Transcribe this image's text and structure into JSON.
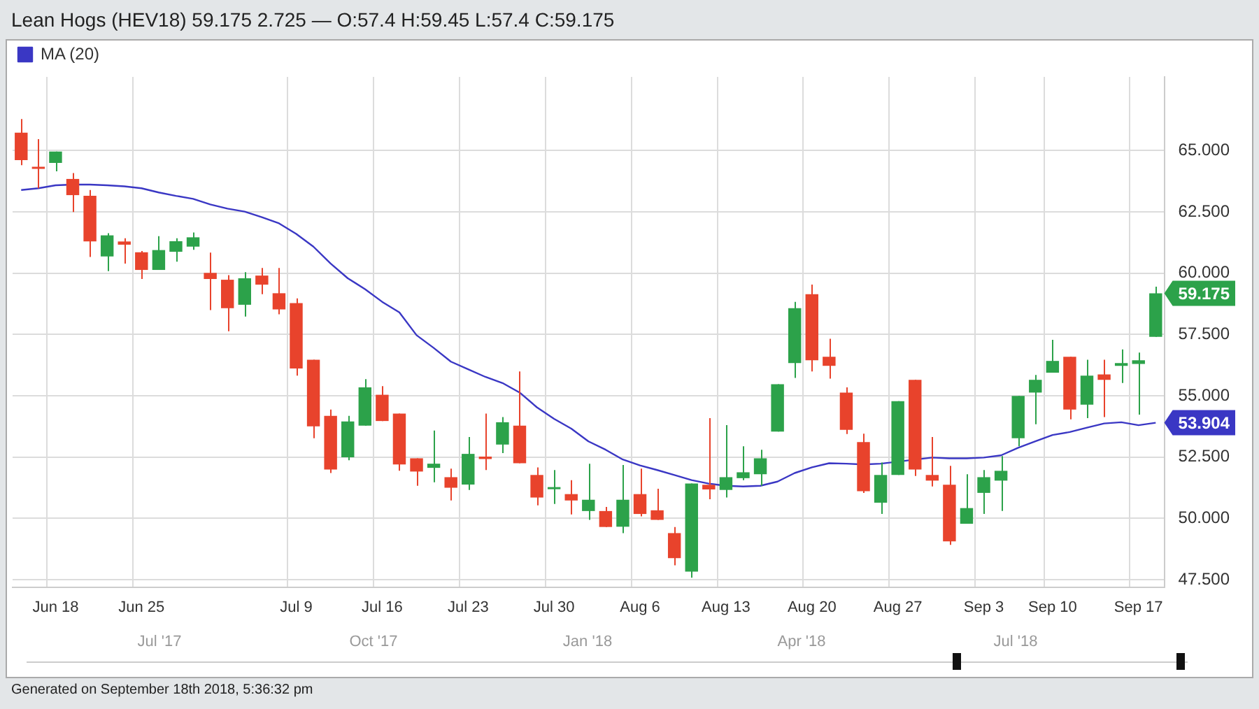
{
  "chart_data": {
    "type": "candlestick",
    "title": "Lean Hogs (HEV18) 59.175 2.725 — O:57.4 H:59.45 L:57.4 C:59.175",
    "categories": [
      null,
      null,
      "Jun 18",
      null,
      null,
      null,
      null,
      "Jun 25",
      null,
      null,
      null,
      null,
      null,
      null,
      null,
      null,
      "Jul 9",
      null,
      null,
      null,
      null,
      "Jul 16",
      null,
      null,
      null,
      null,
      "Jul 23",
      null,
      null,
      null,
      null,
      "Jul 30",
      null,
      null,
      null,
      null,
      "Aug 6",
      null,
      null,
      null,
      null,
      "Aug 13",
      null,
      null,
      null,
      null,
      "Aug 20",
      null,
      null,
      null,
      null,
      "Aug 27",
      null,
      null,
      null,
      null,
      "Sep 3",
      null,
      null,
      null,
      "Sep 10",
      null,
      null,
      null,
      null,
      "Sep 17",
      null
    ],
    "ohlc": [
      [
        65.73,
        66.28,
        64.4,
        64.61
      ],
      [
        64.33,
        65.46,
        63.46,
        64.25
      ],
      [
        64.49,
        64.96,
        64.15,
        64.96
      ],
      [
        63.84,
        64.08,
        62.49,
        63.18
      ],
      [
        63.15,
        63.39,
        60.66,
        61.29
      ],
      [
        60.68,
        61.63,
        60.08,
        61.54
      ],
      [
        61.29,
        61.42,
        60.39,
        61.16
      ],
      [
        60.85,
        60.9,
        59.76,
        60.13
      ],
      [
        60.13,
        61.51,
        60.13,
        60.94
      ],
      [
        60.87,
        61.42,
        60.47,
        61.3
      ],
      [
        61.08,
        61.66,
        60.95,
        61.46
      ],
      [
        60.01,
        60.84,
        58.49,
        59.76
      ],
      [
        59.73,
        59.92,
        57.63,
        58.57
      ],
      [
        58.71,
        60.04,
        58.23,
        59.79
      ],
      [
        59.9,
        60.21,
        59.14,
        59.53
      ],
      [
        59.18,
        60.21,
        58.32,
        58.52
      ],
      [
        58.78,
        58.97,
        55.82,
        56.11
      ],
      [
        56.47,
        56.47,
        53.27,
        53.75
      ],
      [
        54.18,
        54.44,
        51.85,
        51.99
      ],
      [
        52.49,
        54.18,
        52.37,
        53.95
      ],
      [
        53.78,
        55.68,
        53.78,
        55.34
      ],
      [
        55.04,
        55.39,
        53.97,
        53.97
      ],
      [
        54.27,
        54.27,
        51.94,
        52.2
      ],
      [
        52.45,
        52.45,
        51.33,
        51.91
      ],
      [
        52.06,
        53.58,
        51.47,
        52.23
      ],
      [
        51.68,
        52.03,
        50.73,
        51.25
      ],
      [
        51.38,
        53.32,
        51.16,
        52.63
      ],
      [
        52.52,
        54.27,
        51.97,
        52.42
      ],
      [
        53.01,
        54.13,
        52.66,
        53.92
      ],
      [
        53.78,
        55.99,
        52.25,
        52.25
      ],
      [
        51.77,
        52.08,
        50.53,
        50.85
      ],
      [
        51.19,
        51.97,
        50.59,
        51.22
      ],
      [
        50.99,
        51.56,
        50.16,
        50.73
      ],
      [
        50.3,
        52.23,
        49.94,
        50.76
      ],
      [
        50.3,
        50.47,
        49.65,
        49.65
      ],
      [
        49.66,
        52.18,
        49.4,
        50.76
      ],
      [
        50.99,
        52.03,
        50.08,
        50.18
      ],
      [
        50.33,
        51.21,
        49.94,
        49.94
      ],
      [
        49.4,
        49.65,
        48.09,
        48.38
      ],
      [
        47.83,
        51.42,
        47.58,
        51.42
      ],
      [
        51.37,
        54.09,
        50.78,
        51.18
      ],
      [
        51.16,
        53.8,
        50.85,
        51.68
      ],
      [
        51.64,
        52.94,
        51.56,
        51.88
      ],
      [
        51.8,
        52.8,
        51.33,
        52.45
      ],
      [
        53.54,
        55.47,
        53.54,
        55.47
      ],
      [
        56.33,
        58.83,
        55.73,
        58.57
      ],
      [
        59.14,
        59.53,
        55.99,
        56.45
      ],
      [
        56.59,
        57.32,
        55.7,
        56.22
      ],
      [
        55.13,
        55.34,
        53.44,
        53.61
      ],
      [
        53.11,
        53.45,
        51.04,
        51.11
      ],
      [
        50.64,
        52.28,
        50.18,
        51.77
      ],
      [
        51.77,
        54.78,
        51.77,
        54.78
      ],
      [
        55.65,
        55.65,
        51.73,
        51.99
      ],
      [
        51.77,
        53.32,
        51.3,
        51.54
      ],
      [
        51.37,
        52.14,
        48.92,
        49.06
      ],
      [
        49.78,
        51.8,
        49.78,
        50.42
      ],
      [
        51.04,
        51.97,
        50.18,
        51.68
      ],
      [
        51.54,
        52.54,
        50.3,
        51.94
      ],
      [
        53.27,
        54.99,
        52.94,
        54.99
      ],
      [
        55.13,
        55.85,
        53.84,
        55.65
      ],
      [
        55.94,
        57.28,
        55.94,
        56.42
      ],
      [
        56.59,
        56.59,
        54.04,
        54.44
      ],
      [
        54.64,
        56.47,
        54.09,
        55.82
      ],
      [
        55.87,
        56.47,
        54.13,
        55.65
      ],
      [
        56.22,
        56.89,
        55.52,
        56.33
      ],
      [
        56.3,
        56.76,
        54.23,
        56.45
      ],
      [
        57.4,
        59.45,
        57.4,
        59.175
      ]
    ],
    "colors": [
      "#e8432c",
      "#e8432c",
      "#2ca24a",
      "#e8432c",
      "#e8432c",
      "#2ca24a",
      "#e8432c",
      "#e8432c",
      "#2ca24a",
      "#2ca24a",
      "#2ca24a",
      "#e8432c",
      "#e8432c",
      "#2ca24a",
      "#e8432c",
      "#e8432c",
      "#e8432c",
      "#e8432c",
      "#e8432c",
      "#2ca24a",
      "#2ca24a",
      "#e8432c",
      "#e8432c",
      "#e8432c",
      "#2ca24a",
      "#e8432c",
      "#2ca24a",
      "#e8432c",
      "#2ca24a",
      "#e8432c",
      "#e8432c",
      "#2ca24a",
      "#e8432c",
      "#2ca24a",
      "#e8432c",
      "#2ca24a",
      "#e8432c",
      "#e8432c",
      "#e8432c",
      "#2ca24a",
      "#e8432c",
      "#2ca24a",
      "#2ca24a",
      "#2ca24a",
      "#2ca24a",
      "#2ca24a",
      "#e8432c",
      "#e8432c",
      "#e8432c",
      "#e8432c",
      "#2ca24a",
      "#2ca24a",
      "#e8432c",
      "#e8432c",
      "#e8432c",
      "#2ca24a",
      "#2ca24a",
      "#2ca24a",
      "#2ca24a",
      "#2ca24a",
      "#2ca24a",
      "#e8432c",
      "#2ca24a",
      "#e8432c",
      "#2ca24a",
      "#2ca24a",
      "#2ca24a"
    ],
    "series": [
      {
        "name": "MA (20)",
        "type": "line",
        "color": "#3a37c4",
        "values": [
          63.39,
          63.46,
          63.58,
          63.61,
          63.61,
          63.58,
          63.54,
          63.46,
          63.29,
          63.15,
          63.03,
          62.8,
          62.63,
          62.51,
          62.28,
          62.03,
          61.6,
          61.08,
          60.39,
          59.79,
          59.35,
          58.83,
          58.4,
          57.47,
          56.95,
          56.39,
          56.08,
          55.77,
          55.52,
          55.13,
          54.53,
          54.06,
          53.66,
          53.14,
          52.8,
          52.4,
          52.16,
          51.97,
          51.77,
          51.56,
          51.42,
          51.33,
          51.3,
          51.33,
          51.5,
          51.85,
          52.08,
          52.25,
          52.23,
          52.2,
          52.23,
          null,
          null,
          52.48,
          52.45,
          52.45,
          52.48,
          52.57,
          52.88,
          53.14,
          53.4,
          53.52,
          53.7,
          53.87,
          53.92,
          53.8,
          53.9
        ]
      }
    ],
    "ylim": [
      47.2,
      68
    ],
    "yticks": [
      {
        "value": 47.5,
        "label": "47.500"
      },
      {
        "value": 50,
        "label": "50.000"
      },
      {
        "value": 52.5,
        "label": "52.500"
      },
      {
        "value": 55,
        "label": "55.000"
      },
      {
        "value": 57.5,
        "label": "57.500"
      },
      {
        "value": 60,
        "label": "60.000"
      },
      {
        "value": 62.5,
        "label": "62.500"
      },
      {
        "value": 65,
        "label": "65.000"
      }
    ],
    "grid": true,
    "legend": "top left",
    "annotations": [
      "59.175",
      "53.904",
      "Jul '17",
      "Oct '17",
      "Jan '18",
      "Apr '18",
      "Jul '18",
      "Generated on September 18th 2018, 5:36:32 pm"
    ]
  }
}
